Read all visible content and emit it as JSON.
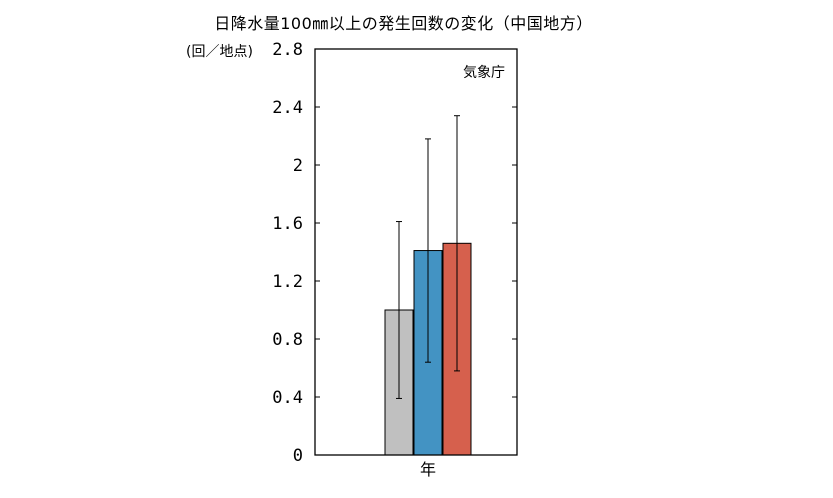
{
  "title": "日降水量100㎜以上の発生回数の変化（中国地方）",
  "y_unit": "(回／地点)",
  "source": "気象庁",
  "chart_data": {
    "type": "bar",
    "categories": [
      "年"
    ],
    "series": [
      {
        "values": [
          1.0
        ],
        "error_low": [
          0.39
        ],
        "error_high": [
          1.61
        ],
        "color": "#c0c0c0"
      },
      {
        "values": [
          1.41
        ],
        "error_low": [
          0.64
        ],
        "error_high": [
          2.18
        ],
        "color": "#4393c3"
      },
      {
        "values": [
          1.46
        ],
        "error_low": [
          0.58
        ],
        "error_high": [
          2.34
        ],
        "color": "#d6604d"
      }
    ],
    "ylim": [
      0,
      2.8
    ],
    "yticks": [
      "0",
      "0.4",
      "0.8",
      "1.2",
      "1.6",
      "2",
      "2.4",
      "2.8"
    ],
    "ytick_values": [
      0,
      0.4,
      0.8,
      1.2,
      1.6,
      2,
      2.4,
      2.8
    ],
    "grid": false,
    "annotations": [
      "気象庁"
    ]
  }
}
